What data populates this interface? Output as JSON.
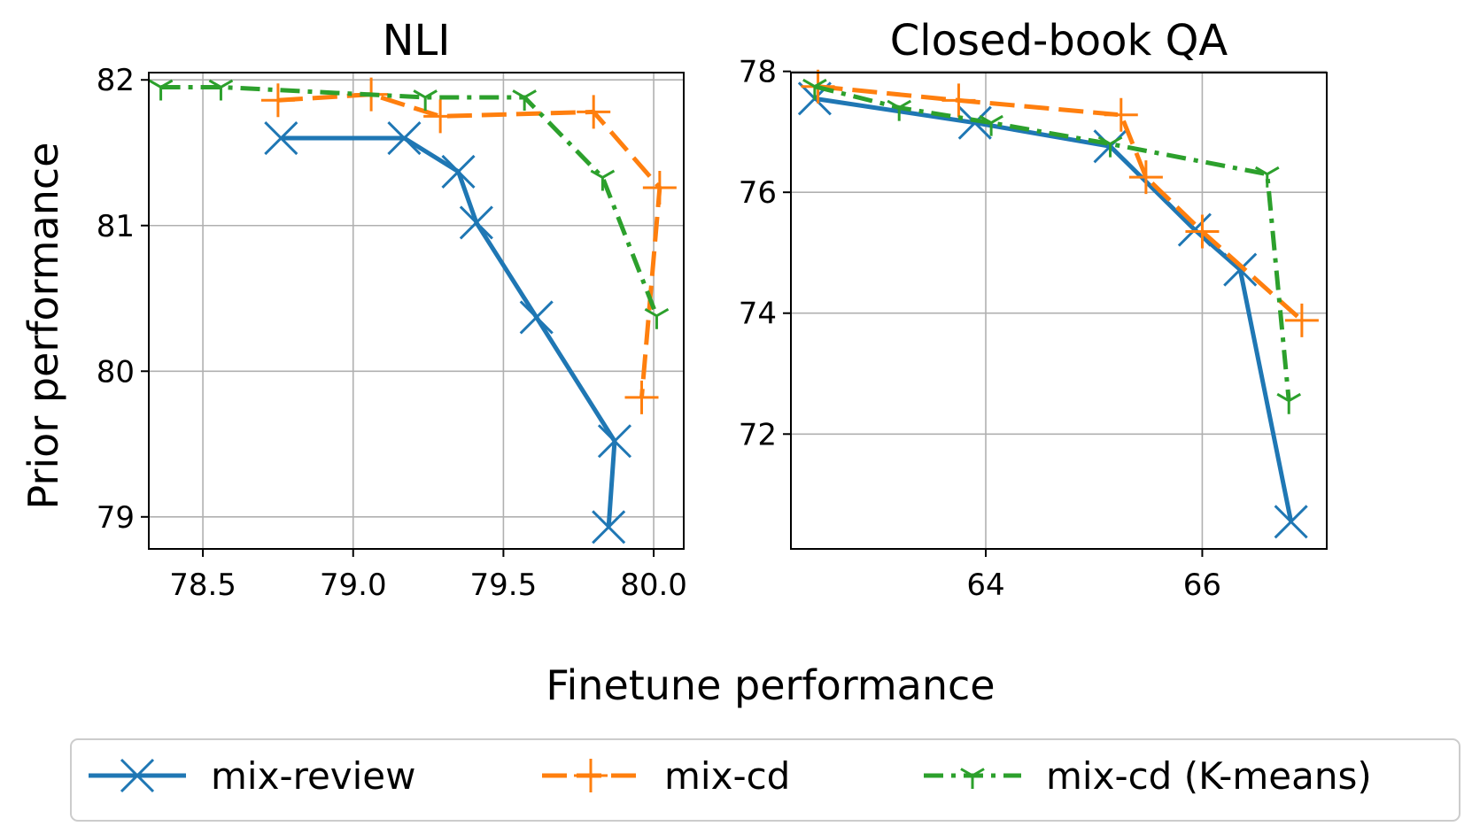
{
  "colors": {
    "mix-review": "#1f77b4",
    "mix-cd": "#ff7f0e",
    "mix-cd-kmeans": "#2ca02c"
  },
  "figure": {
    "xlabel": "Finetune performance",
    "ylabel": "Prior performance"
  },
  "legend": {
    "placement": "bottom-center",
    "items": [
      {
        "key": "mix-review",
        "label": "mix-review",
        "marker": "x",
        "dash": "solid"
      },
      {
        "key": "mix-cd",
        "label": "mix-cd",
        "marker": "plus",
        "dash": "dashed"
      },
      {
        "key": "mix-cd-kmeans",
        "label": "mix-cd (K-means)",
        "marker": "tri-down",
        "dash": "dashdot"
      }
    ]
  },
  "chart_data": [
    {
      "type": "line",
      "title": "NLI",
      "xlim": [
        78.32,
        80.1
      ],
      "ylim": [
        78.78,
        82.05
      ],
      "xticks": [
        78.5,
        79.0,
        79.5,
        80.0
      ],
      "xtick_labels": [
        "78.5",
        "79.0",
        "79.5",
        "80.0"
      ],
      "yticks": [
        79,
        80,
        81,
        82
      ],
      "ytick_labels": [
        "79",
        "80",
        "81",
        "82"
      ],
      "grid": true,
      "series": [
        {
          "name": "mix-review",
          "key": "mix-review",
          "x": [
            78.76,
            79.17,
            79.35,
            79.41,
            79.61,
            79.87,
            79.85
          ],
          "y": [
            81.6,
            81.6,
            81.37,
            81.02,
            80.37,
            79.52,
            78.93
          ]
        },
        {
          "name": "mix-cd",
          "key": "mix-cd",
          "x": [
            78.75,
            79.06,
            79.29,
            79.8,
            80.02,
            79.96
          ],
          "y": [
            81.86,
            81.9,
            81.75,
            81.78,
            81.26,
            79.82
          ]
        },
        {
          "name": "mix-cd (K-means)",
          "key": "mix-cd-kmeans",
          "x": [
            78.36,
            78.56,
            79.24,
            79.57,
            79.83,
            80.01
          ],
          "y": [
            81.95,
            81.95,
            81.88,
            81.88,
            81.33,
            80.38
          ]
        }
      ]
    },
    {
      "type": "line",
      "title": "Closed-book QA",
      "xlim": [
        62.2,
        67.15
      ],
      "ylim": [
        70.1,
        77.98
      ],
      "xticks": [
        64,
        66
      ],
      "xtick_labels": [
        "64",
        "66"
      ],
      "yticks": [
        72,
        74,
        76,
        78
      ],
      "ytick_labels": [
        "72",
        "74",
        "76",
        "78"
      ],
      "grid": true,
      "series": [
        {
          "name": "mix-review",
          "key": "mix-review",
          "x": [
            62.42,
            63.9,
            65.15,
            65.93,
            66.35,
            66.82
          ],
          "y": [
            77.55,
            77.15,
            76.76,
            75.38,
            74.72,
            70.55
          ]
        },
        {
          "name": "mix-cd",
          "key": "mix-cd",
          "x": [
            62.45,
            63.75,
            65.25,
            65.48,
            66.0,
            66.92
          ],
          "y": [
            77.75,
            77.52,
            77.28,
            76.25,
            75.35,
            73.88
          ]
        },
        {
          "name": "mix-cd (K-means)",
          "key": "mix-cd-kmeans",
          "x": [
            62.42,
            63.2,
            64.05,
            65.15,
            66.6,
            66.8
          ],
          "y": [
            77.75,
            77.4,
            77.15,
            76.8,
            76.3,
            72.55
          ]
        }
      ]
    }
  ]
}
